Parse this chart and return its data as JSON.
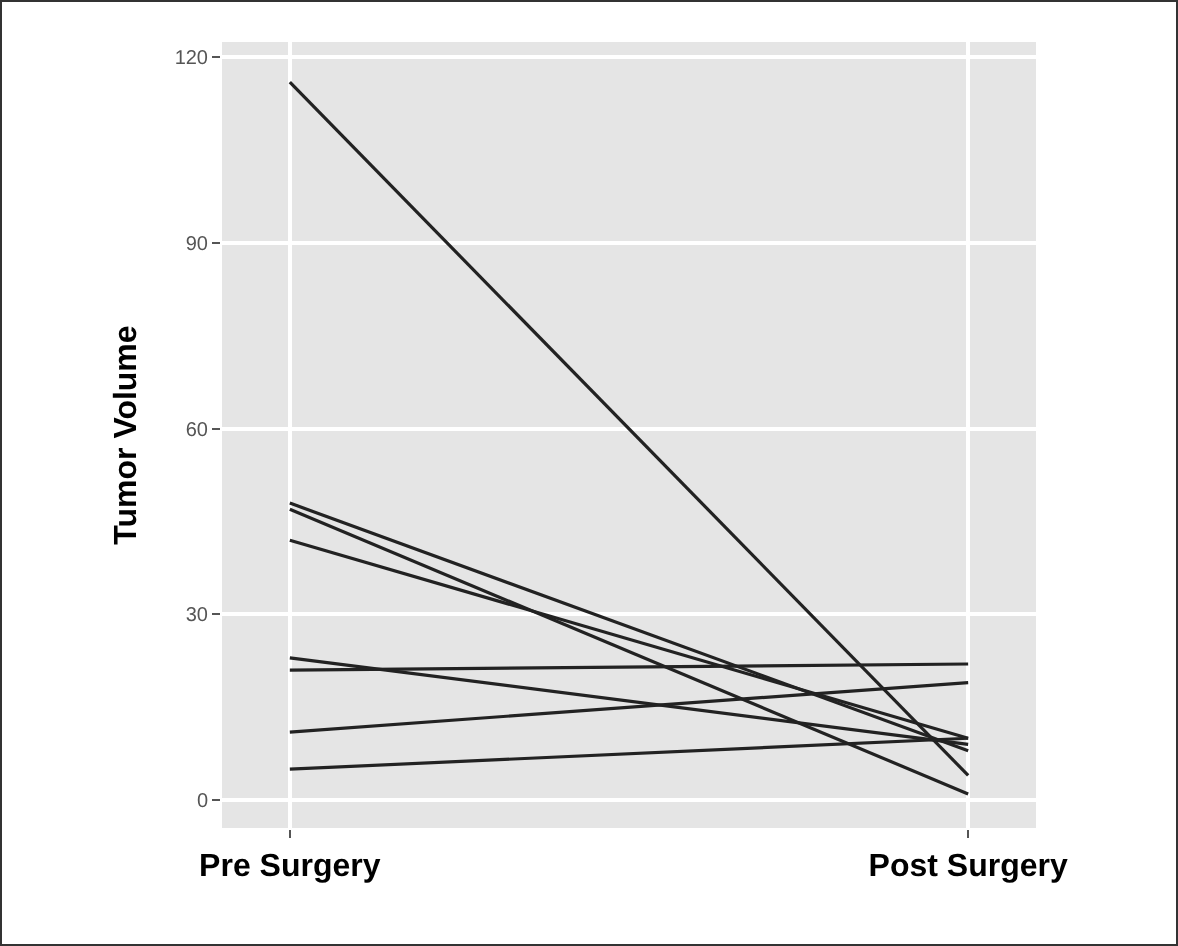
{
  "chart_data": {
    "type": "line",
    "ylabel": "Tumor Volume",
    "categories": [
      "Pre Surgery",
      "Post Surgery"
    ],
    "ylim": [
      -4.5,
      122.5
    ],
    "yticks": [
      0,
      30,
      60,
      90,
      120
    ],
    "grid": true,
    "marker": "none",
    "line_style": "solid",
    "series": [
      {
        "color": "#222222",
        "values": [
          116,
          4
        ]
      },
      {
        "color": "#222222",
        "values": [
          48,
          8
        ]
      },
      {
        "color": "#222222",
        "values": [
          47,
          1
        ]
      },
      {
        "color": "#222222",
        "values": [
          42,
          10
        ]
      },
      {
        "color": "#222222",
        "values": [
          23,
          9
        ]
      },
      {
        "color": "#222222",
        "values": [
          21,
          22
        ]
      },
      {
        "color": "#222222",
        "values": [
          11,
          19
        ]
      },
      {
        "color": "#222222",
        "values": [
          5,
          10
        ]
      }
    ]
  }
}
